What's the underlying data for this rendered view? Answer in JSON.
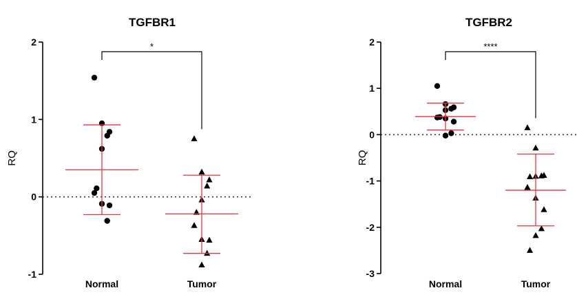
{
  "chart_data": [
    {
      "type": "scatter",
      "title": "TGFBR1",
      "ylabel": "RQ",
      "xlabel": "",
      "ylim": [
        -1,
        2
      ],
      "yticks": [
        "-1",
        "0",
        "1",
        "2"
      ],
      "categories": [
        "Normal",
        "Tumor"
      ],
      "marker_shapes": [
        "circle",
        "triangle"
      ],
      "mark_color": "#e8343a",
      "reference_line": 0,
      "significance": {
        "label": "*",
        "between": [
          "Normal",
          "Tumor"
        ]
      },
      "series": [
        {
          "category": "Normal",
          "points": [
            1.54,
            0.95,
            0.84,
            0.79,
            0.62,
            0.11,
            0.05,
            -0.09,
            -0.11,
            -0.31
          ],
          "mean": 0.35,
          "sd_low": -0.23,
          "sd_high": 0.93
        },
        {
          "category": "Tumor",
          "points": [
            0.75,
            0.32,
            0.22,
            0.14,
            -0.04,
            -0.2,
            -0.37,
            -0.55,
            -0.56,
            -0.73,
            -0.88
          ],
          "mean": -0.22,
          "sd_low": -0.73,
          "sd_high": 0.28
        }
      ]
    },
    {
      "type": "scatter",
      "title": "TGFBR2",
      "ylabel": "RQ",
      "xlabel": "",
      "ylim": [
        -3,
        2
      ],
      "yticks": [
        "-3",
        "-2",
        "-1",
        "0",
        "1",
        "2"
      ],
      "categories": [
        "Normal",
        "Tumor"
      ],
      "marker_shapes": [
        "circle",
        "triangle"
      ],
      "mark_color": "#e8343a",
      "reference_line": 0,
      "significance": {
        "label": "****",
        "between": [
          "Normal",
          "Tumor"
        ]
      },
      "series": [
        {
          "category": "Normal",
          "points": [
            1.05,
            0.66,
            0.59,
            0.56,
            0.53,
            0.38,
            0.37,
            0.35,
            0.28,
            0.03,
            -0.02
          ],
          "mean": 0.39,
          "sd_low": 0.1,
          "sd_high": 0.68
        },
        {
          "category": "Tumor",
          "points": [
            0.15,
            -0.29,
            -0.88,
            -0.89,
            -0.9,
            -0.91,
            -1.14,
            -1.37,
            -1.62,
            -2.03,
            -2.18,
            -2.5
          ],
          "mean": -1.2,
          "sd_low": -1.97,
          "sd_high": -0.42
        }
      ]
    }
  ]
}
